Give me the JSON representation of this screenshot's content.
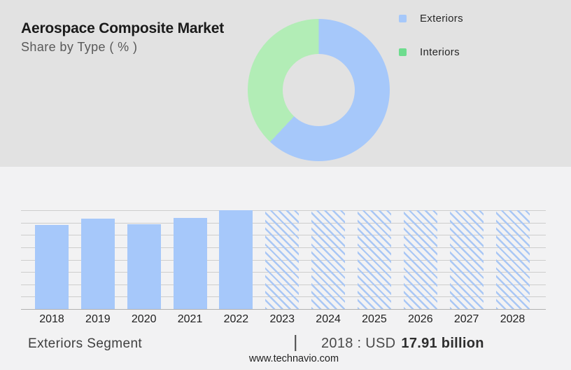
{
  "header": {
    "title": "Aerospace Composite Market",
    "subtitle": "Share by Type ( % )"
  },
  "donut_legend": {
    "items": [
      {
        "label": "Exteriors",
        "swatch_color": "#a6c8fa"
      },
      {
        "label": "Interiors",
        "swatch_color": "#6edc8e"
      }
    ]
  },
  "chart_data": [
    {
      "type": "pie",
      "subtype": "donut",
      "title": "Aerospace Composite Market - Share by Type ( % )",
      "labels": [
        "Exteriors",
        "Interiors"
      ],
      "values": [
        62,
        38
      ],
      "colors": [
        "#a6c8fa",
        "#b2edb6"
      ],
      "start_angle_deg": 0,
      "direction": "clockwise",
      "inner_radius_ratio": 0.5,
      "legend_position": "right"
    },
    {
      "type": "bar",
      "categories": [
        "2018",
        "2019",
        "2020",
        "2021",
        "2022",
        "2023",
        "2024",
        "2025",
        "2026",
        "2027",
        "2028"
      ],
      "series": [
        {
          "name": "Historic (solid bars)",
          "values": [
            85,
            91.5,
            85.5,
            92.5,
            100,
            null,
            null,
            null,
            null,
            null,
            null
          ]
        },
        {
          "name": "Forecast (hatched placeholder bars)",
          "values": [
            null,
            null,
            null,
            null,
            null,
            100,
            100,
            100,
            100,
            100,
            100
          ]
        }
      ],
      "ylim": [
        0,
        100
      ],
      "y_unit": "relative bar height, % of 2022 bar (y-axis unlabeled)",
      "grid": true,
      "gridline_count": 9,
      "legend_position": "none",
      "bar_color": "#a6c8fa",
      "hatch_color": "#a9c7f5"
    }
  ],
  "footer": {
    "segment_label": "Exteriors Segment",
    "divider": "|",
    "value_prefix": "2018 : USD",
    "value_bold": "17.91 billion",
    "website": "www.technavio.com"
  },
  "colors": {
    "top_bg": "#e2e2e2",
    "bottom_bg": "#f2f2f3",
    "grid": "#cdcdcd",
    "axis": "#b1b1b1",
    "title_text": "#1a1a1a",
    "subtitle_text": "#595959",
    "bar_blue": "#a6c8fa",
    "donut_green": "#b2edb6",
    "legend_green": "#6edc8e"
  }
}
